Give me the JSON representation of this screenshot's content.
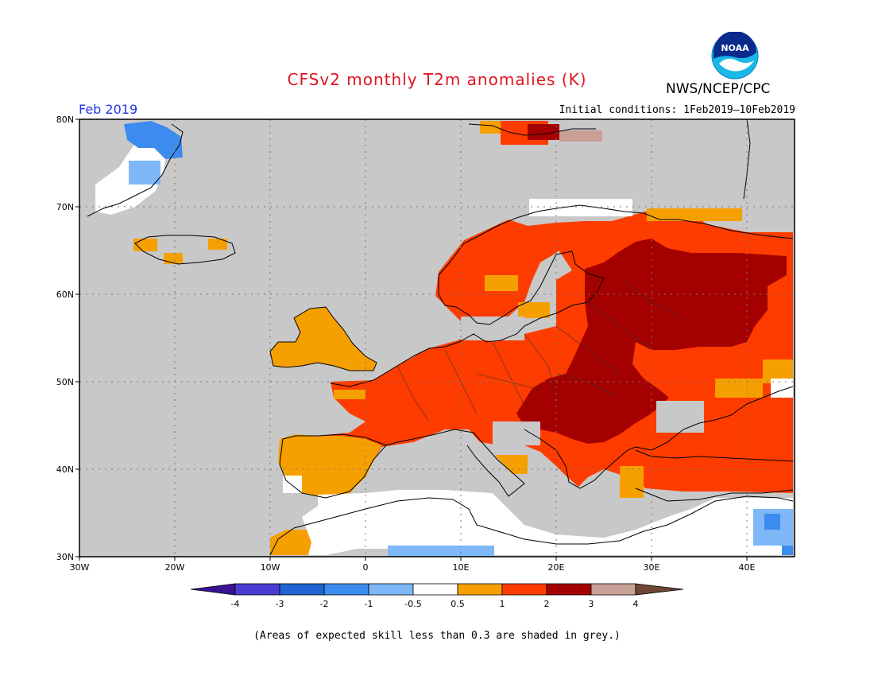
{
  "title": "CFSv2 monthly T2m anomalies (K)",
  "organization": "NWS/NCEP/CPC",
  "logo_text": "NOAA",
  "valid_month": "Feb 2019",
  "initial_conditions": "Initial conditions: 1Feb2019–10Feb2019",
  "footnote": "(Areas of expected skill less than 0.3 are shaded in grey.)",
  "map": {
    "lon_range": [
      -30,
      45
    ],
    "lat_range": [
      30,
      80
    ],
    "lon_ticks": [
      "30W",
      "20W",
      "10W",
      "0",
      "10E",
      "20E",
      "30E",
      "40E"
    ],
    "lat_ticks": [
      "30N",
      "40N",
      "50N",
      "60N",
      "70N",
      "80N"
    ],
    "grid": "dotted",
    "low_skill_color": "#c8c8c8"
  },
  "colorbar": {
    "labels": [
      "-4",
      "-3",
      "-2",
      "-1",
      "-0.5",
      "0.5",
      "1",
      "2",
      "3",
      "4"
    ],
    "colors": [
      "#3a1296",
      "#4a3cd2",
      "#1e64d2",
      "#3c8cf0",
      "#7eb8f8",
      "#ffffff",
      "#f5a000",
      "#ff3c00",
      "#a50000",
      "#c8a096",
      "#6e4632"
    ]
  },
  "colors": {
    "warm_05_1": "#f5a000",
    "warm_1_2": "#ff3c00",
    "warm_2_3": "#a50000",
    "warm_3_4": "#c8a096",
    "cool_1_05": "#7eb8f8",
    "cool_2_1": "#3c8cf0",
    "neutral": "#ffffff"
  }
}
